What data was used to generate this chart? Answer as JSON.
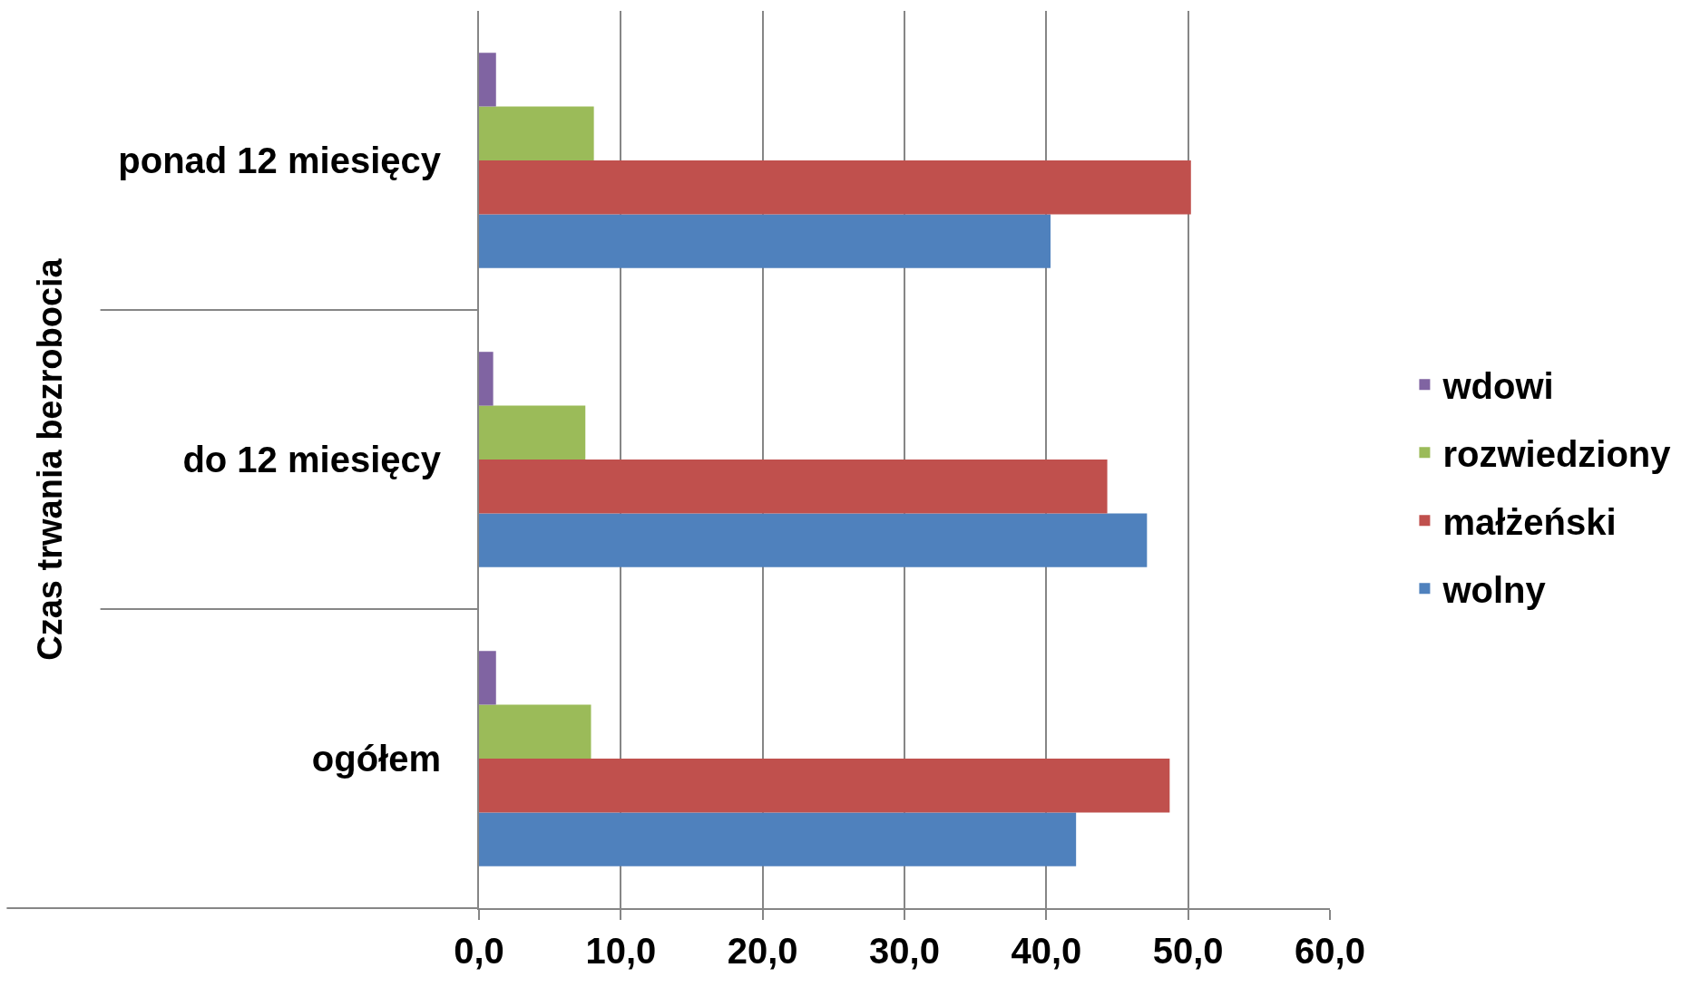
{
  "chart_data": {
    "type": "bar",
    "orientation": "horizontal",
    "ylabel": "Czas trwania bezrobocia",
    "categories": [
      "ponad 12 miesięcy",
      "do 12 miesięcy",
      "ogółem"
    ],
    "series": [
      {
        "name": "wolny",
        "color": "#4f81bd",
        "values": [
          40.3,
          47.1,
          42.1
        ]
      },
      {
        "name": "małżeński",
        "color": "#c0504d",
        "values": [
          50.2,
          44.3,
          48.7
        ]
      },
      {
        "name": "rozwiedziony",
        "color": "#9bbb59",
        "values": [
          8.1,
          7.5,
          7.9
        ]
      },
      {
        "name": "wdowi",
        "color": "#8064a2",
        "values": [
          1.2,
          1.0,
          1.2
        ]
      }
    ],
    "xlim": [
      0,
      60
    ],
    "xticks": [
      {
        "value": 0,
        "label": "0,0"
      },
      {
        "value": 10,
        "label": "10,0"
      },
      {
        "value": 20,
        "label": "20,0"
      },
      {
        "value": 30,
        "label": "30,0"
      },
      {
        "value": 40,
        "label": "40,0"
      },
      {
        "value": 50,
        "label": "50,0"
      },
      {
        "value": 60,
        "label": "60,0"
      }
    ],
    "grid": "x",
    "legend": "right"
  }
}
